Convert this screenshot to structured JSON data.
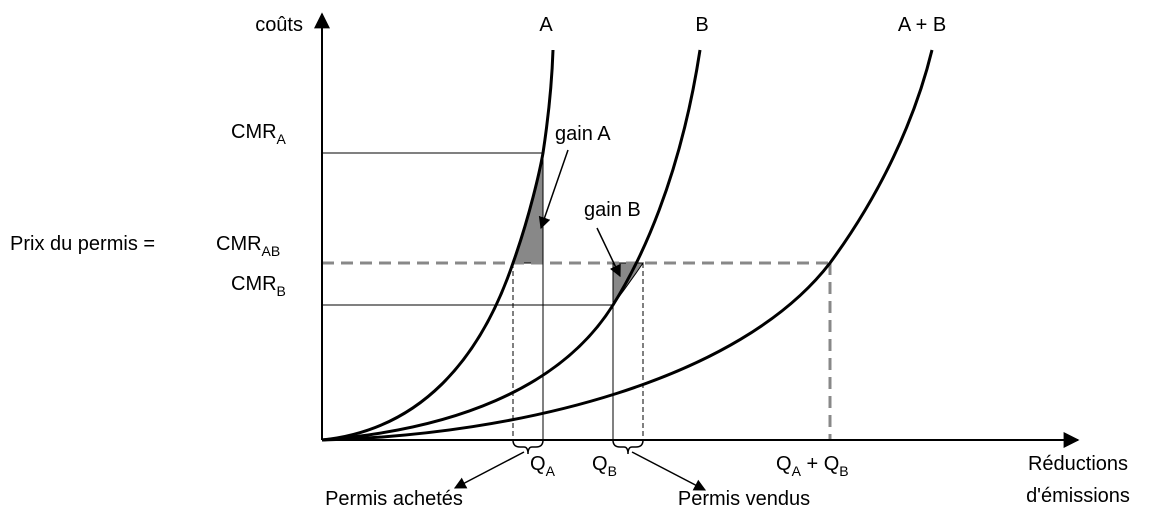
{
  "axes": {
    "y_label": "coûts",
    "x_label_line1": "Réductions",
    "x_label_line2": "d'émissions"
  },
  "curves": {
    "a": "A",
    "b": "B",
    "ab": "A + B"
  },
  "levels": {
    "cmr_a": {
      "text": "CMR",
      "sub": "A"
    },
    "price_prefix": "Prix du permis =",
    "cmr_ab": {
      "text": "CMR",
      "sub": "AB"
    },
    "cmr_b": {
      "text": "CMR",
      "sub": "B"
    }
  },
  "gains": {
    "a": "gain A",
    "b": "gain B"
  },
  "quantities": {
    "qa": {
      "text": "Q",
      "sub": "A"
    },
    "qb": {
      "text": "Q",
      "sub": "B"
    },
    "qab": {
      "text1": "Q",
      "sub1": "A",
      "plus": " + ",
      "text2": "Q",
      "sub2": "B"
    }
  },
  "permits": {
    "bought": "Permis achetés",
    "sold": "Permis vendus"
  }
}
